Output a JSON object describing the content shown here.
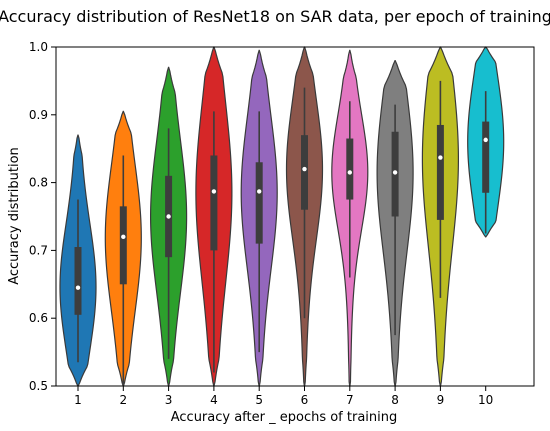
{
  "chart_data": {
    "type": "violin",
    "title": "Accuracy distribution of ResNet18 on SAR data, per epoch of training",
    "xlabel": "Accuracy after _ epochs of training",
    "ylabel": "Accuracy distribution",
    "ylim": [
      0.5,
      1.0
    ],
    "yticks": [
      "0.5",
      "0.6",
      "0.7",
      "0.8",
      "0.9",
      "1.0"
    ],
    "categories": [
      "1",
      "2",
      "3",
      "4",
      "5",
      "6",
      "7",
      "8",
      "9",
      "10"
    ],
    "grid": false,
    "legend": "none",
    "series": [
      {
        "color": "#1f77b4",
        "min": 0.5,
        "max": 0.87,
        "q1": 0.605,
        "median": 0.645,
        "q3": 0.705,
        "wlow": 0.535,
        "whigh": 0.775
      },
      {
        "color": "#ff7f0e",
        "min": 0.5,
        "max": 0.905,
        "q1": 0.65,
        "median": 0.72,
        "q3": 0.765,
        "wlow": 0.5,
        "whigh": 0.84
      },
      {
        "color": "#2ca02c",
        "min": 0.5,
        "max": 0.97,
        "q1": 0.69,
        "median": 0.75,
        "q3": 0.81,
        "wlow": 0.54,
        "whigh": 0.88
      },
      {
        "color": "#d62728",
        "min": 0.5,
        "max": 1.0,
        "q1": 0.7,
        "median": 0.787,
        "q3": 0.84,
        "wlow": 0.52,
        "whigh": 0.905
      },
      {
        "color": "#9467bd",
        "min": 0.5,
        "max": 0.995,
        "q1": 0.71,
        "median": 0.787,
        "q3": 0.83,
        "wlow": 0.55,
        "whigh": 0.905
      },
      {
        "color": "#8c564b",
        "min": 0.5,
        "max": 1.0,
        "q1": 0.76,
        "median": 0.82,
        "q3": 0.87,
        "wlow": 0.6,
        "whigh": 0.94
      },
      {
        "color": "#e377c2",
        "min": 0.5,
        "max": 0.995,
        "q1": 0.775,
        "median": 0.815,
        "q3": 0.865,
        "wlow": 0.66,
        "whigh": 0.92
      },
      {
        "color": "#7f7f7f",
        "min": 0.5,
        "max": 0.98,
        "q1": 0.75,
        "median": 0.815,
        "q3": 0.875,
        "wlow": 0.575,
        "whigh": 0.915
      },
      {
        "color": "#bcbd22",
        "min": 0.5,
        "max": 1.0,
        "q1": 0.745,
        "median": 0.837,
        "q3": 0.885,
        "wlow": 0.63,
        "whigh": 0.95
      },
      {
        "color": "#17becf",
        "min": 0.72,
        "max": 1.0,
        "q1": 0.785,
        "median": 0.863,
        "q3": 0.89,
        "wlow": 0.725,
        "whigh": 0.935
      }
    ]
  }
}
